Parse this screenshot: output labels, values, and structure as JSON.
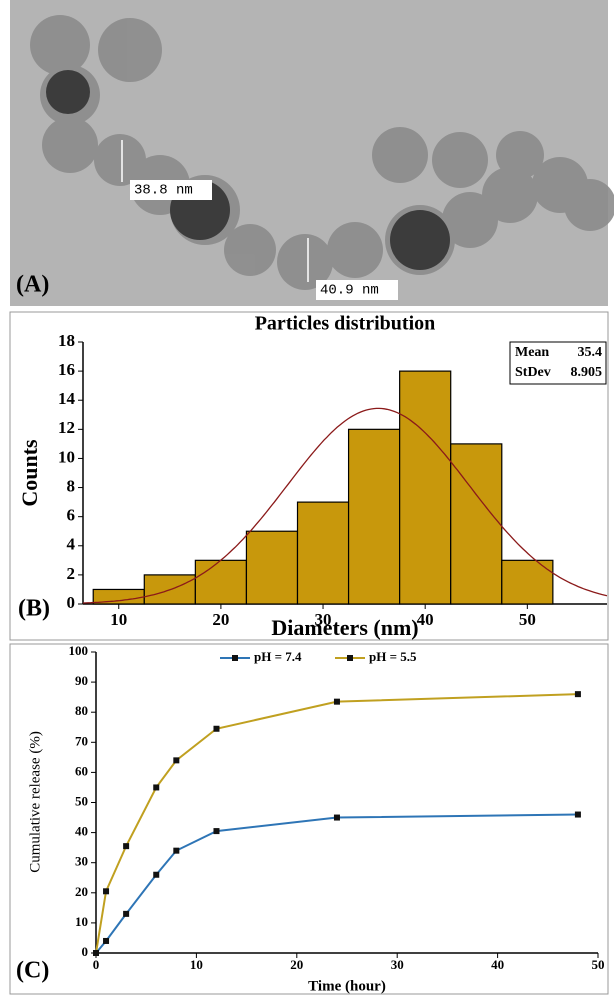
{
  "panel_a": {
    "label": "(A)",
    "annotations": [
      "38.8 nm",
      "40.9 nm"
    ]
  },
  "chart_data": [
    {
      "type": "histogram",
      "panel_label": "(B)",
      "title": "Particles distribution",
      "xlabel": "Diameters (nm)",
      "ylabel": "Counts",
      "bins": [
        7.5,
        12.5,
        17.5,
        22.5,
        27.5,
        32.5,
        37.5,
        42.5,
        47.5,
        52.5
      ],
      "counts": [
        1,
        2,
        3,
        5,
        7,
        12,
        16,
        11,
        3
      ],
      "color": "#c8980c",
      "fit_color": "#8b1a1a",
      "stats": [
        {
          "label": "Mean",
          "value": 35.4
        },
        {
          "label": "StDev",
          "value": 8.905
        }
      ],
      "xlim": [
        6.5,
        57.8
      ],
      "ylim": [
        0,
        18
      ],
      "xticks": [
        10,
        20,
        30,
        40,
        50
      ],
      "yticks": [
        0,
        2,
        4,
        6,
        8,
        10,
        12,
        14,
        16,
        18
      ]
    },
    {
      "type": "line",
      "panel_label": "(C)",
      "xlabel": "Time (hour)",
      "ylabel": "Cumulative release (%)",
      "x": [
        0,
        1,
        3,
        6,
        8,
        12,
        24,
        48
      ],
      "series": [
        {
          "name": "pH = 7.4",
          "color": "#2e75b6",
          "values": [
            0,
            4,
            13,
            26,
            34,
            40.5,
            45,
            46
          ]
        },
        {
          "name": "pH = 5.5",
          "color": "#c0a020",
          "values": [
            0,
            20.5,
            35.5,
            55,
            64,
            74.5,
            83.5,
            86
          ]
        }
      ],
      "xlim": [
        0,
        50
      ],
      "ylim": [
        0,
        100
      ],
      "xticks": [
        0,
        10,
        20,
        30,
        40,
        50
      ],
      "yticks": [
        0,
        10,
        20,
        30,
        40,
        50,
        60,
        70,
        80,
        90,
        100
      ],
      "legend": "top"
    }
  ]
}
